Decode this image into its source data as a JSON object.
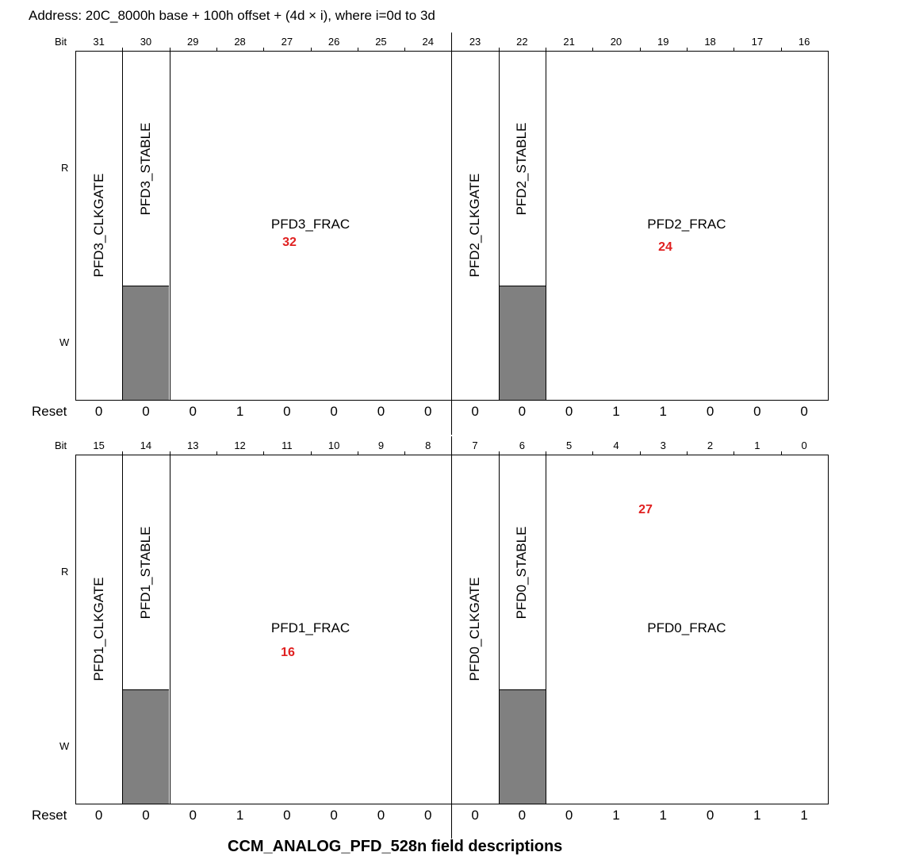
{
  "address": "Address: 20C_8000h base + 100h offset + (4d × i), where i=0d to 3d",
  "labels": {
    "bit": "Bit",
    "r": "R",
    "w": "W",
    "reset": "Reset"
  },
  "colors": {
    "shaded": "#808080",
    "annotation": "#e02020"
  },
  "top_register": {
    "bits": [
      "31",
      "30",
      "29",
      "28",
      "27",
      "26",
      "25",
      "24",
      "23",
      "22",
      "21",
      "20",
      "19",
      "18",
      "17",
      "16"
    ],
    "reset": [
      "0",
      "0",
      "0",
      "1",
      "0",
      "0",
      "0",
      "0",
      "0",
      "0",
      "0",
      "1",
      "1",
      "0",
      "0",
      "0"
    ],
    "fields": {
      "clkgate_a": "PFD3_CLKGATE",
      "stable_a": "PFD3_STABLE",
      "frac_a": "PFD3_FRAC",
      "clkgate_b": "PFD2_CLKGATE",
      "stable_b": "PFD2_STABLE",
      "frac_b": "PFD2_FRAC"
    },
    "annotations": {
      "a": "32",
      "b": "24"
    }
  },
  "bottom_register": {
    "bits": [
      "15",
      "14",
      "13",
      "12",
      "11",
      "10",
      "9",
      "8",
      "7",
      "6",
      "5",
      "4",
      "3",
      "2",
      "1",
      "0"
    ],
    "reset": [
      "0",
      "0",
      "0",
      "1",
      "0",
      "0",
      "0",
      "0",
      "0",
      "0",
      "0",
      "1",
      "1",
      "0",
      "1",
      "1"
    ],
    "fields": {
      "clkgate_a": "PFD1_CLKGATE",
      "stable_a": "PFD1_STABLE",
      "frac_a": "PFD1_FRAC",
      "clkgate_b": "PFD0_CLKGATE",
      "stable_b": "PFD0_STABLE",
      "frac_b": "PFD0_FRAC"
    },
    "annotations": {
      "a": "16",
      "b": "27"
    }
  },
  "caption": "CCM_ANALOG_PFD_528n field descriptions"
}
